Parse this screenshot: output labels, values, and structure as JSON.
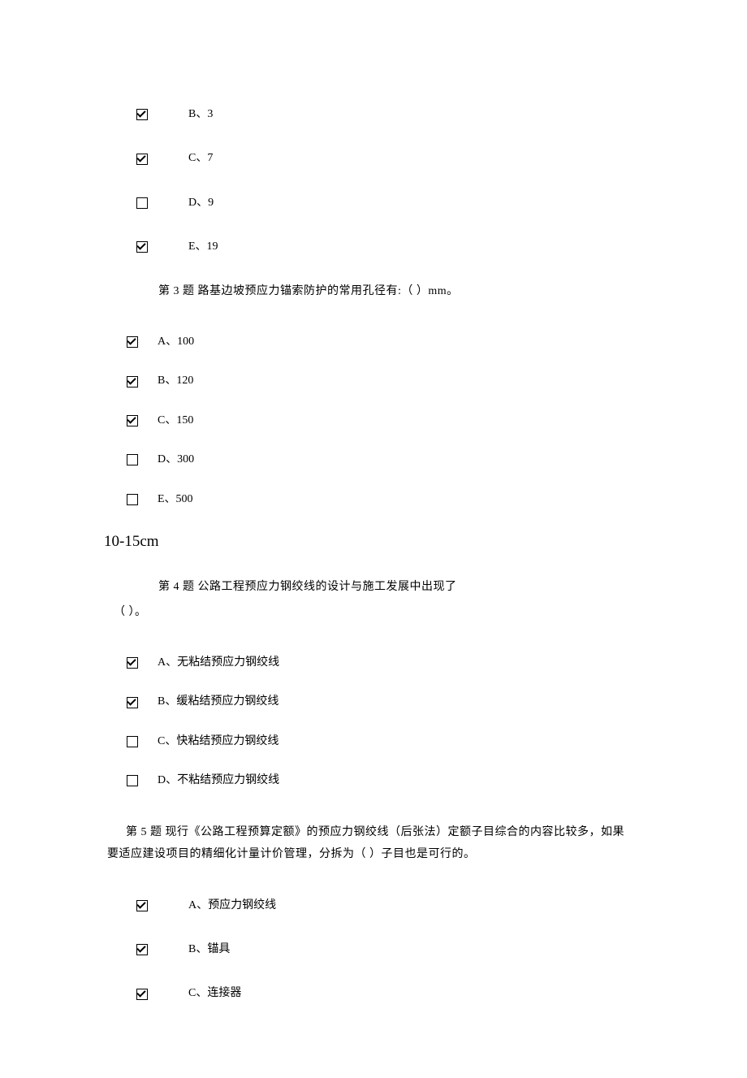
{
  "q2_partial": {
    "options": [
      {
        "label": "B、3",
        "checked": true
      },
      {
        "label": "C、7",
        "checked": true
      },
      {
        "label": "D、9",
        "checked": false
      },
      {
        "label": "E、19",
        "checked": true
      }
    ]
  },
  "q3": {
    "text": "第 3 题 路基边坡预应力锚索防护的常用孔径有:（ ）mm。",
    "options": [
      {
        "label": "A、100",
        "checked": true
      },
      {
        "label": "B、120",
        "checked": true
      },
      {
        "label": "C、150",
        "checked": true
      },
      {
        "label": "D、300",
        "checked": false
      },
      {
        "label": "E、500",
        "checked": false
      }
    ],
    "note": "10-15cm"
  },
  "q4": {
    "text_line1": "第 4 题 公路工程预应力钢绞线的设计与施工发展中出现了",
    "text_line2": "（ ）。",
    "options": [
      {
        "label": "A、无粘结预应力钢绞线",
        "checked": true
      },
      {
        "label": "B、缓粘结预应力钢绞线",
        "checked": true
      },
      {
        "label": "C、快粘结预应力钢绞线",
        "checked": false
      },
      {
        "label": "D、不粘结预应力钢绞线",
        "checked": false
      }
    ]
  },
  "q5": {
    "text_line1": "第 5 题 现行《公路工程预算定额》的预应力钢绞线（后张法）定额子目综合的内容比较多，如果",
    "text_line2": "要适应建设项目的精细化计量计价管理，分拆为（ ）子目也是可行的。",
    "options": [
      {
        "label": "A、预应力钢绞线",
        "checked": true
      },
      {
        "label": "B、锚具",
        "checked": true
      },
      {
        "label": "C、连接器",
        "checked": true
      }
    ]
  },
  "colors": {
    "background": "#ffffff",
    "text": "#000000"
  }
}
